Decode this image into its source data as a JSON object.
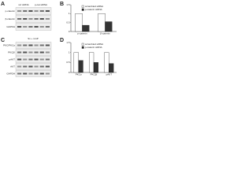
{
  "panels": {
    "a": {
      "label": "A",
      "columns": [
        "scr siRNA",
        "p-cat siRNA"
      ],
      "rows": [
        "p-catenin",
        "β-catenin",
        "GAPDH"
      ]
    },
    "b": {
      "label": "B",
      "chart_data": {
        "type": "bar",
        "categories": [
          "p-catenin",
          "β-catenin"
        ],
        "series": [
          {
            "name": "scrambled siRNA",
            "color": "#ffffff",
            "values": [
              1.0,
              1.0
            ]
          },
          {
            "name": "p-catenin siRNA",
            "color": "#333333",
            "values": [
              0.35,
              0.55
            ]
          }
        ],
        "ylim": [
          0,
          1.5
        ],
        "yticks": [
          0,
          0.5,
          1,
          1.5
        ]
      }
    },
    "c": {
      "label": "C",
      "header": "Sv + 4-AP",
      "rows": [
        "PKC/PKCα",
        "PKCβI",
        "pAKT",
        "AKT",
        "GAPDH"
      ]
    },
    "d": {
      "label": "D",
      "chart_data": {
        "type": "bar",
        "categories": [
          "PKCα",
          "PKCβI",
          "pAKT"
        ],
        "series": [
          {
            "name": "scrambled siRNA",
            "color": "#ffffff",
            "values": [
              1.0,
              1.0,
              1.0
            ]
          },
          {
            "name": "p-catenin siRNA",
            "color": "#333333",
            "values": [
              0.6,
              0.5,
              0.45
            ]
          }
        ],
        "ylim": [
          0,
          1.5
        ],
        "yticks": [
          0,
          0.5,
          1,
          1.5
        ]
      }
    }
  }
}
